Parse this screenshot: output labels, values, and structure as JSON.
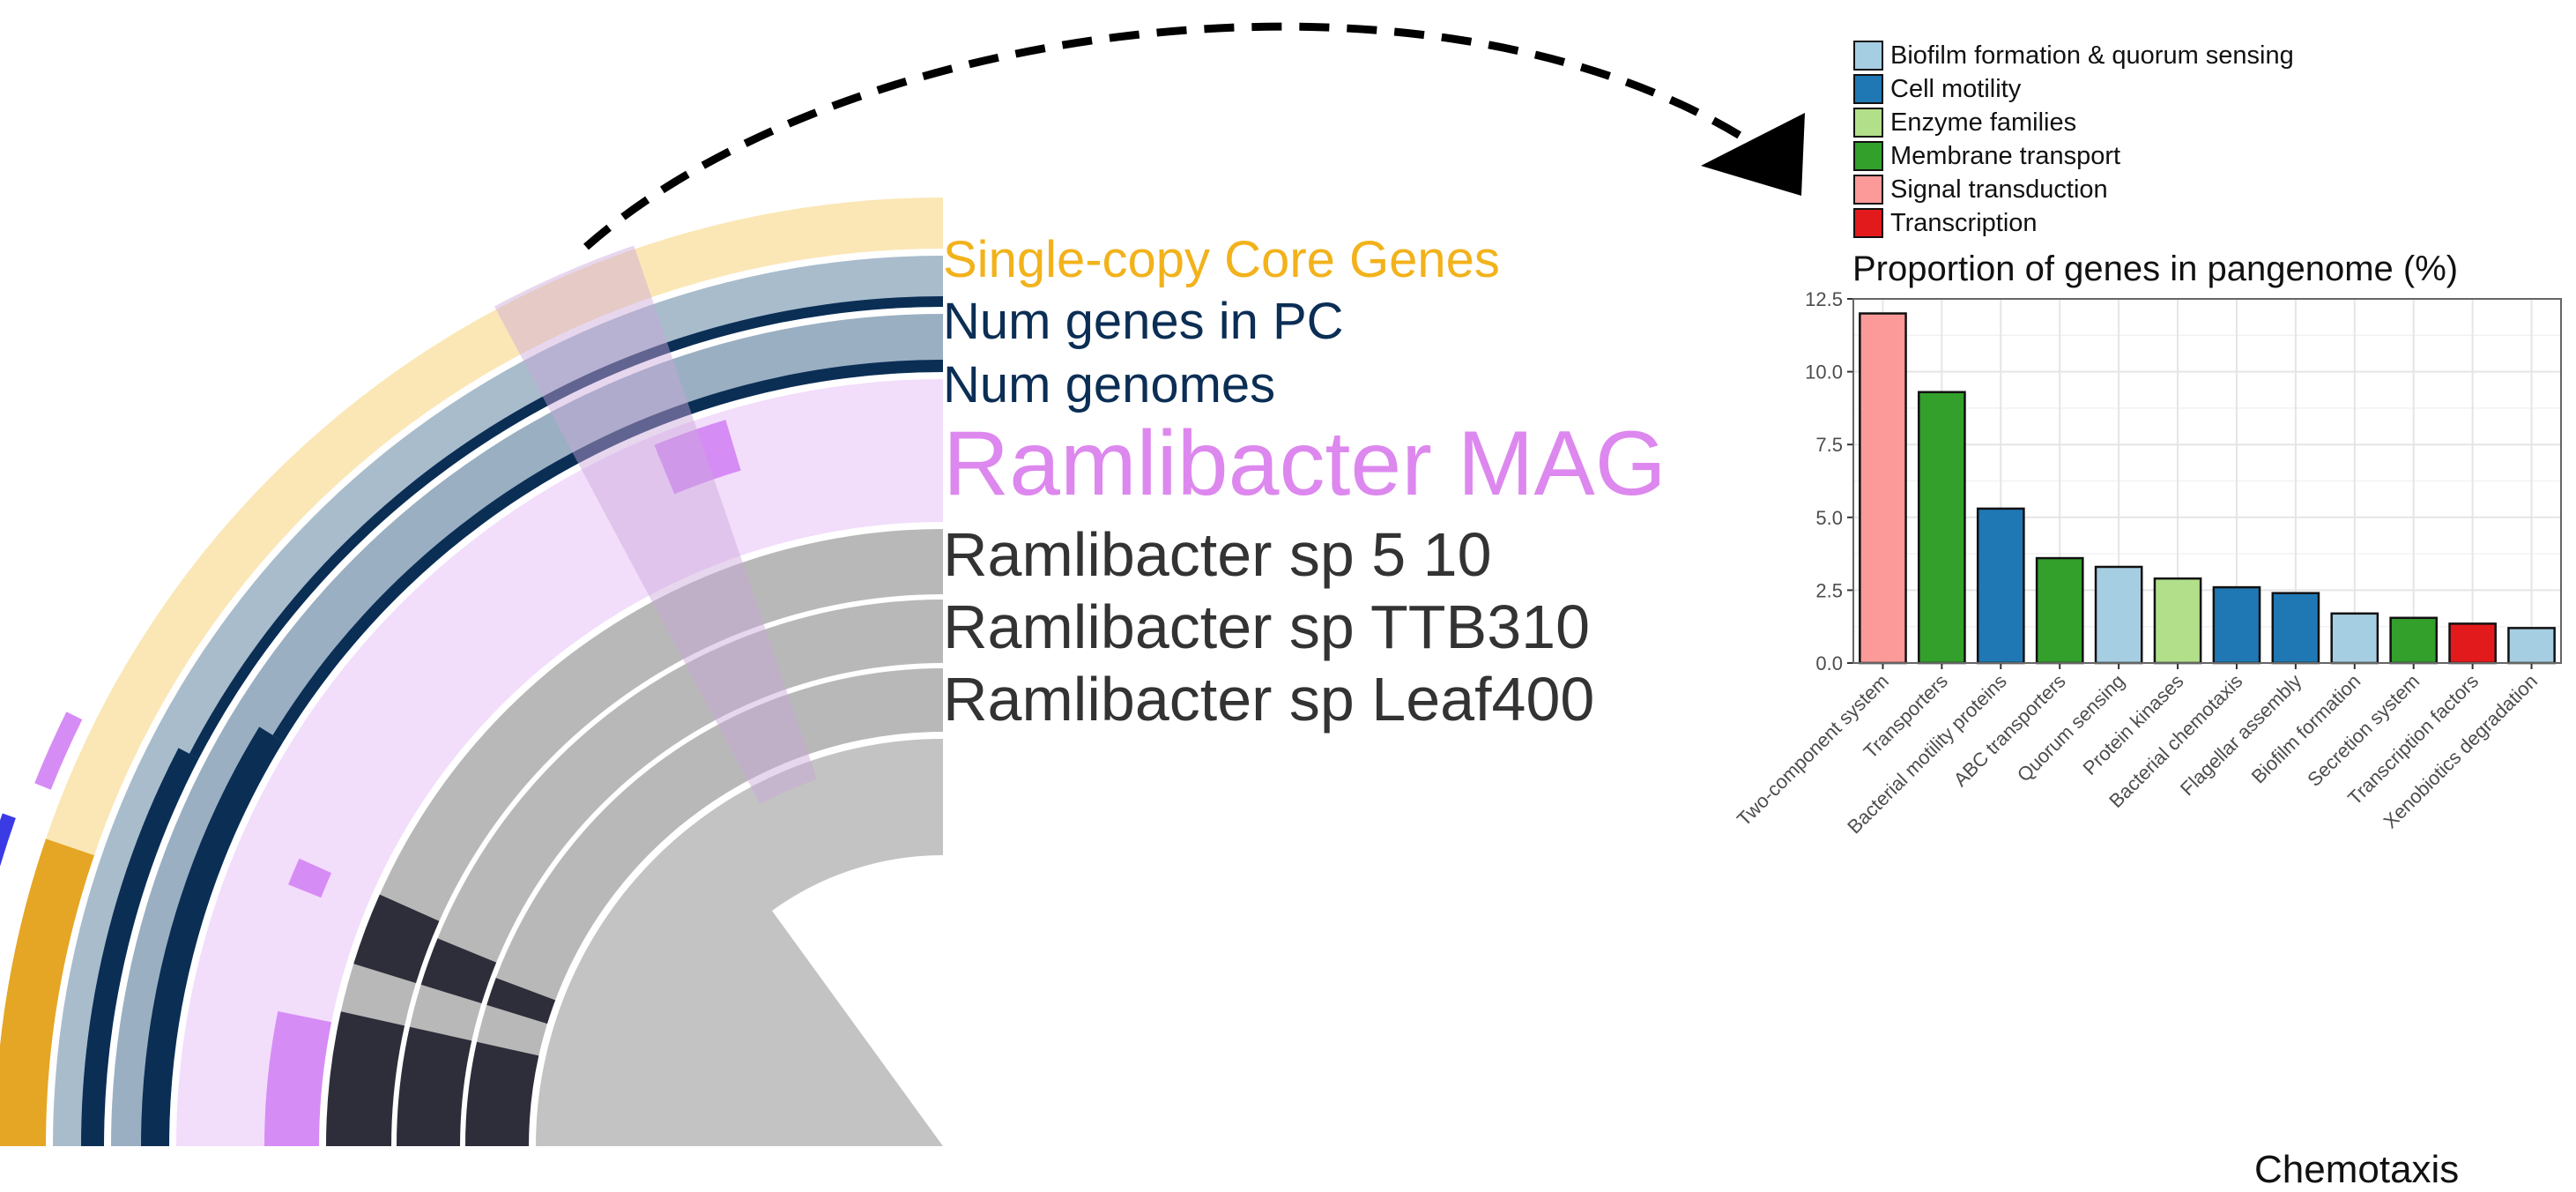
{
  "rings": [
    {
      "label": "Single-copy Core Genes",
      "color": "#F2B21B"
    },
    {
      "label": "Num genes in PC",
      "color": "#0B2E55"
    },
    {
      "label": "Num genomes",
      "color": "#0B2E55"
    },
    {
      "label": "Ramlibacter MAG",
      "color": "#DD88EE"
    },
    {
      "label": "Ramlibacter sp 5 10",
      "color": "#333333"
    },
    {
      "label": "Ramlibacter sp TTB310",
      "color": "#333333"
    },
    {
      "label": "Ramlibacter sp Leaf400",
      "color": "#333333"
    }
  ],
  "legend": [
    {
      "label": "Biofilm formation & quorum sensing",
      "color": "#A6CEE3"
    },
    {
      "label": "Cell motility",
      "color": "#1F78B4"
    },
    {
      "label": "Enzyme families",
      "color": "#B2DF8A"
    },
    {
      "label": "Membrane transport",
      "color": "#33A02C"
    },
    {
      "label": "Signal transduction",
      "color": "#FB9A99"
    },
    {
      "label": "Transcription",
      "color": "#E31A1C"
    }
  ],
  "chart_data": {
    "type": "bar",
    "title": "Proportion of genes in pangenome (%)",
    "xlabel": "",
    "ylabel": "",
    "ylim": [
      0,
      12.5
    ],
    "yticks": [
      "0.0",
      "2.5",
      "5.0",
      "7.5",
      "10.0",
      "12.5"
    ],
    "grid": true,
    "legend_position": "top",
    "categories": [
      "Two-component system",
      "Transporters",
      "Bacterial motility proteins",
      "ABC transporters",
      "Quorum sensing",
      "Protein kinases",
      "Bacterial chemotaxis",
      "Flagellar assembly",
      "Biofilm formation",
      "Secretion system",
      "Transcription factors",
      "Xenobiotics degradation"
    ],
    "values": [
      12.0,
      9.3,
      5.3,
      3.6,
      3.3,
      2.9,
      2.6,
      2.4,
      1.7,
      1.55,
      1.35,
      1.2
    ],
    "groups": [
      "Signal transduction",
      "Membrane transport",
      "Cell motility",
      "Membrane transport",
      "Biofilm formation & quorum sensing",
      "Enzyme families",
      "Cell motility",
      "Cell motility",
      "Biofilm formation & quorum sensing",
      "Membrane transport",
      "Transcription",
      "Biofilm formation & quorum sensing"
    ]
  },
  "footer_text": "Chemotaxis"
}
